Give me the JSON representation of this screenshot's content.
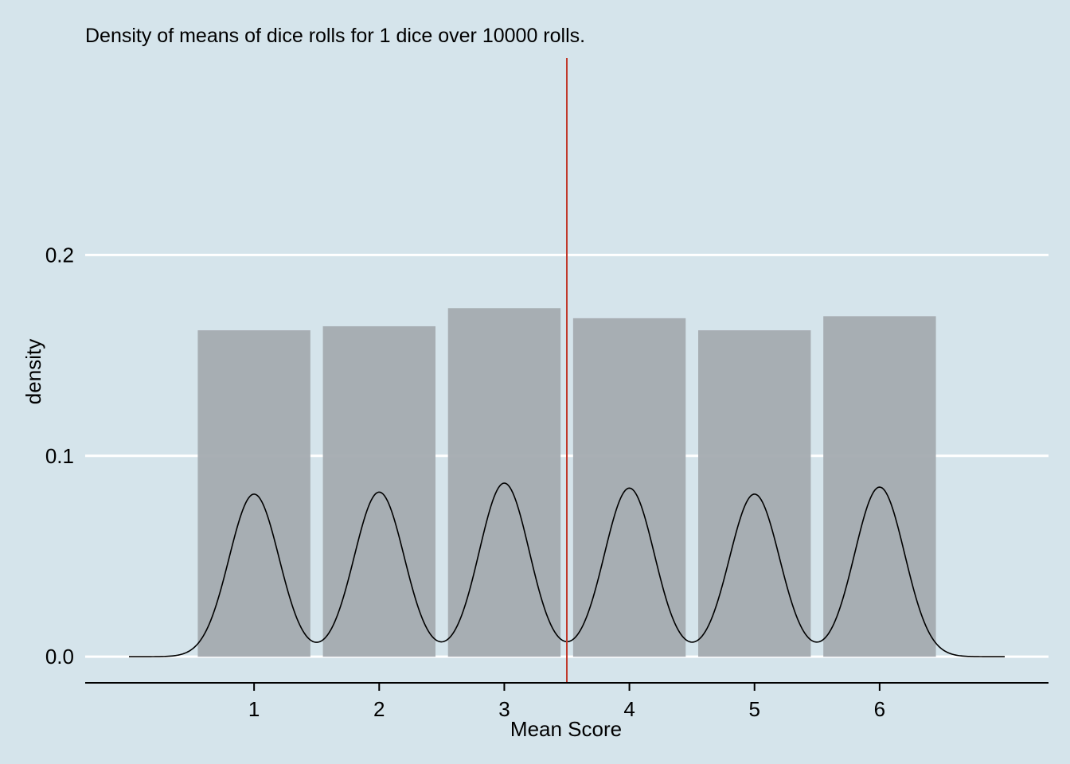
{
  "chart_data": {
    "type": "bar",
    "title": "Density of means of dice rolls for 1 dice over 10000 rolls.",
    "xlabel": "Mean Score",
    "ylabel": "density",
    "categories": [
      "1",
      "2",
      "3",
      "4",
      "5",
      "6"
    ],
    "x": [
      1,
      2,
      3,
      4,
      5,
      6
    ],
    "values": [
      0.1625,
      0.1645,
      0.1735,
      0.1685,
      0.1625,
      0.1695
    ],
    "bar_width": 0.9,
    "density_curve": {
      "bandwidth": 0.2,
      "x_range": [
        -0.0,
        7.0
      ]
    },
    "mean_line": {
      "x": 3.5,
      "color": "#c0392b"
    },
    "xlim": [
      -0.35,
      7.35
    ],
    "ylim": [
      -0.013,
      0.298
    ],
    "x_ticks": [
      1,
      2,
      3,
      4,
      5,
      6
    ],
    "y_ticks": [
      0.0,
      0.1,
      0.2
    ],
    "y_tick_labels": [
      "0.0",
      "0.1",
      "0.2"
    ],
    "grid": true,
    "colors": {
      "background": "#d5e4eb",
      "bars": "#a4abb0",
      "grid": "#ffffff",
      "curve": "#000000",
      "axis": "#000000"
    }
  }
}
